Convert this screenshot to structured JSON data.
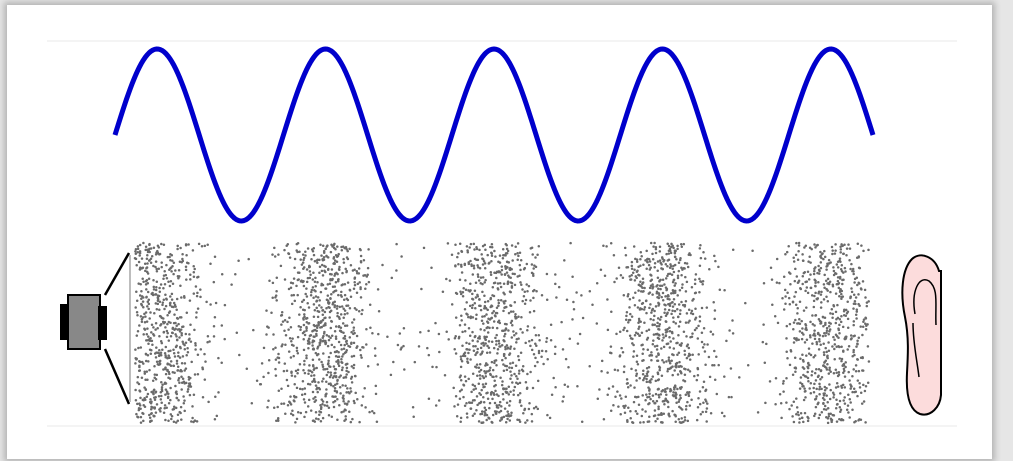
{
  "diagram": {
    "wave": {
      "cycles": 4.5,
      "color": "#0000cc"
    },
    "particles": {
      "color": "#6a6a6a",
      "compression_bands": 5
    },
    "source": {
      "icon": "speaker-icon",
      "colors": {
        "magnet": "#000000",
        "body": "#888888",
        "cone_edge": "#000000"
      }
    },
    "receiver": {
      "icon": "ear-icon",
      "colors": {
        "skin": "#fcdcdc",
        "outline": "#000000"
      }
    },
    "divider_color": "#e8e8e8"
  }
}
